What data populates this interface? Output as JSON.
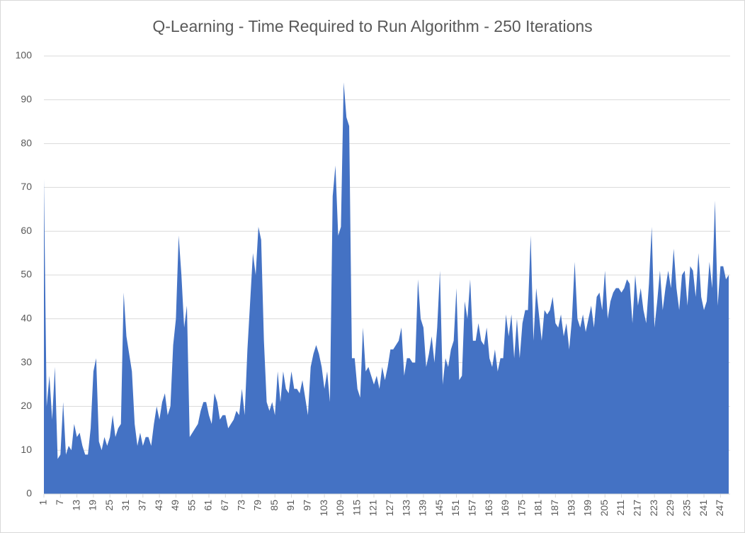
{
  "chart_data": {
    "type": "area",
    "title": "Q-Learning - Time Required to Run Algorithm - 250 Iterations",
    "color": "#4472c4",
    "grid": true,
    "x": [
      1,
      2,
      3,
      4,
      5,
      6,
      7,
      8,
      9,
      10,
      11,
      12,
      13,
      14,
      15,
      16,
      17,
      18,
      19,
      20,
      21,
      22,
      23,
      24,
      25,
      26,
      27,
      28,
      29,
      30,
      31,
      32,
      33,
      34,
      35,
      36,
      37,
      38,
      39,
      40,
      41,
      42,
      43,
      44,
      45,
      46,
      47,
      48,
      49,
      50,
      51,
      52,
      53,
      54,
      55,
      56,
      57,
      58,
      59,
      60,
      61,
      62,
      63,
      64,
      65,
      66,
      67,
      68,
      69,
      70,
      71,
      72,
      73,
      74,
      75,
      76,
      77,
      78,
      79,
      80,
      81,
      82,
      83,
      84,
      85,
      86,
      87,
      88,
      89,
      90,
      91,
      92,
      93,
      94,
      95,
      96,
      97,
      98,
      99,
      100,
      101,
      102,
      103,
      104,
      105,
      106,
      107,
      108,
      109,
      110,
      111,
      112,
      113,
      114,
      115,
      116,
      117,
      118,
      119,
      120,
      121,
      122,
      123,
      124,
      125,
      126,
      127,
      128,
      129,
      130,
      131,
      132,
      133,
      134,
      135,
      136,
      137,
      138,
      139,
      140,
      141,
      142,
      143,
      144,
      145,
      146,
      147,
      148,
      149,
      150,
      151,
      152,
      153,
      154,
      155,
      156,
      157,
      158,
      159,
      160,
      161,
      162,
      163,
      164,
      165,
      166,
      167,
      168,
      169,
      170,
      171,
      172,
      173,
      174,
      175,
      176,
      177,
      178,
      179,
      180,
      181,
      182,
      183,
      184,
      185,
      186,
      187,
      188,
      189,
      190,
      191,
      192,
      193,
      194,
      195,
      196,
      197,
      198,
      199,
      200,
      201,
      202,
      203,
      204,
      205,
      206,
      207,
      208,
      209,
      210,
      211,
      212,
      213,
      214,
      215,
      216,
      217,
      218,
      219,
      220,
      221,
      222,
      223,
      224,
      225,
      226,
      227,
      228,
      229,
      230,
      231,
      232,
      233,
      234,
      235,
      236,
      237,
      238,
      239,
      240,
      241,
      242,
      243,
      244,
      245,
      246,
      247,
      248,
      249,
      250
    ],
    "values": [
      72,
      20,
      27,
      17,
      29,
      8,
      9,
      21,
      9,
      11,
      10,
      16,
      13,
      14,
      11,
      9,
      9,
      15,
      28,
      31,
      12,
      10,
      13,
      11,
      13,
      18,
      13,
      15,
      16,
      46,
      36,
      32,
      28,
      16,
      11,
      14,
      11,
      13,
      13,
      11,
      16,
      20,
      17,
      21,
      23,
      18,
      20,
      34,
      40,
      59,
      50,
      38,
      43,
      13,
      14,
      15,
      16,
      19,
      21,
      21,
      18,
      16,
      23,
      21,
      17,
      18,
      18,
      15,
      16,
      17,
      19,
      18,
      24,
      18,
      33,
      44,
      55,
      50,
      61,
      58,
      35,
      21,
      19,
      21,
      18,
      28,
      21,
      28,
      24,
      23,
      28,
      24,
      24,
      23,
      26,
      22,
      18,
      29,
      32,
      34,
      32,
      29,
      24,
      28,
      21,
      68,
      75,
      59,
      61,
      94,
      86,
      84,
      31,
      31,
      24,
      22,
      38,
      28,
      29,
      27,
      25,
      27,
      24,
      29,
      26,
      29,
      33,
      33,
      34,
      35,
      38,
      27,
      31,
      31,
      30,
      30,
      49,
      40,
      38,
      29,
      32,
      36,
      30,
      38,
      51,
      25,
      31,
      29,
      33,
      35,
      47,
      26,
      27,
      44,
      40,
      49,
      35,
      35,
      39,
      35,
      34,
      38,
      31,
      29,
      33,
      28,
      31,
      31,
      41,
      36,
      41,
      31,
      40,
      31,
      39,
      42,
      42,
      59,
      35,
      47,
      41,
      35,
      42,
      41,
      42,
      45,
      39,
      38,
      41,
      36,
      39,
      33,
      40,
      53,
      40,
      38,
      41,
      37,
      40,
      43,
      38,
      45,
      46,
      42,
      51,
      40,
      44,
      46,
      47,
      47,
      46,
      47,
      49,
      48,
      39,
      50,
      43,
      47,
      42,
      39,
      48,
      61,
      38,
      44,
      51,
      42,
      47,
      51,
      47,
      56,
      47,
      42,
      50,
      51,
      43,
      52,
      51,
      45,
      55,
      45,
      42,
      44,
      53,
      47,
      67,
      43,
      52,
      52,
      49,
      50
    ],
    "xlim": [
      1,
      250
    ],
    "xticks": [
      1,
      7,
      13,
      19,
      25,
      31,
      37,
      43,
      49,
      55,
      61,
      67,
      73,
      79,
      85,
      91,
      97,
      103,
      109,
      115,
      121,
      127,
      133,
      139,
      145,
      151,
      157,
      163,
      169,
      175,
      181,
      187,
      193,
      199,
      205,
      211,
      217,
      223,
      229,
      235,
      241,
      247
    ],
    "ylim": [
      0,
      100
    ],
    "yticks": [
      0,
      10,
      20,
      30,
      40,
      50,
      60,
      70,
      80,
      90,
      100
    ]
  }
}
